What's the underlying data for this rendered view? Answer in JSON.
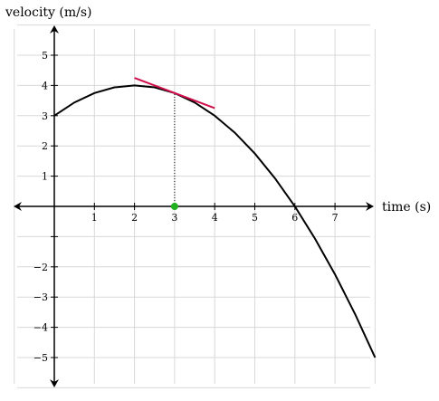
{
  "chart_data": {
    "type": "line",
    "xlabel": "time (s)",
    "ylabel": "velocity (m/s)",
    "xlim": [
      -1,
      8
    ],
    "ylim": [
      -6,
      6
    ],
    "x_ticks": [
      1,
      2,
      3,
      4,
      5,
      6,
      7
    ],
    "y_ticks": [
      -5,
      -4,
      -3,
      -2,
      -1,
      1,
      2,
      3,
      4,
      5
    ],
    "x_tick_labels": [
      "1",
      "2",
      "3",
      "4",
      "5",
      "6",
      "7"
    ],
    "y_tick_labels": [
      "−5",
      "−4",
      "−3",
      "−2",
      "",
      "1",
      "2",
      "3",
      "4",
      "5"
    ],
    "grid": true,
    "series": [
      {
        "x": [
          0,
          0.5,
          1,
          1.5,
          2,
          2.5,
          3,
          3.5,
          4,
          4.5,
          5,
          5.5,
          6,
          6.5,
          7,
          7.5,
          8
        ],
        "y": [
          3,
          3.4375,
          3.75,
          3.9375,
          4,
          3.9375,
          3.75,
          3.4375,
          3,
          2.4375,
          1.75,
          0.9375,
          0,
          -1.0625,
          -2.25,
          -3.5625,
          -5
        ]
      }
    ],
    "tangent_line": {
      "x": [
        2,
        4
      ],
      "y": [
        4.25,
        3.25
      ]
    },
    "highlight_point": {
      "x": 3,
      "y": 0
    },
    "guide_line": {
      "x": [
        3,
        3
      ],
      "y": [
        0,
        3.75
      ]
    },
    "colors": {
      "curve": "#000000",
      "tangent": "#d0104c",
      "point": "#20b020",
      "grid": "#d8d8d8"
    }
  }
}
